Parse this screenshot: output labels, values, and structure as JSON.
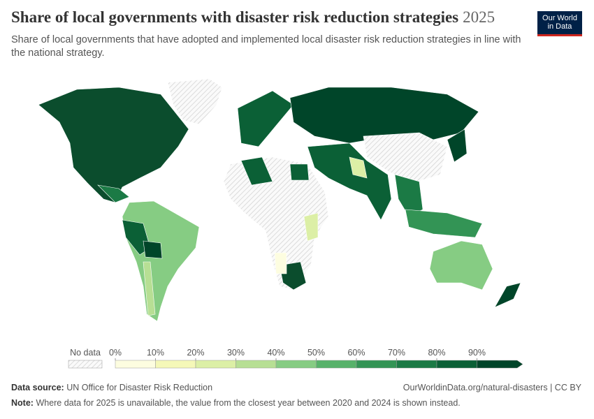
{
  "header": {
    "title": "Share of local governments with disaster risk reduction strategies",
    "year": "2025",
    "subtitle": "Share of local governments that have adopted and implemented local disaster risk reduction strategies in line with the national strategy.",
    "logo": [
      "Our World",
      "in Data"
    ]
  },
  "legend": {
    "no_data": "No data",
    "lim": [
      0,
      100
    ],
    "ticks": [
      {
        "value": 0,
        "label": "0%"
      },
      {
        "value": 10,
        "label": "10%"
      },
      {
        "value": 20,
        "label": "20%"
      },
      {
        "value": 30,
        "label": "30%"
      },
      {
        "value": 40,
        "label": "40%"
      },
      {
        "value": 50,
        "label": "50%"
      },
      {
        "value": 60,
        "label": "60%"
      },
      {
        "value": 70,
        "label": "70%"
      },
      {
        "value": 80,
        "label": "80%"
      },
      {
        "value": 90,
        "label": "90%"
      }
    ],
    "colors": [
      "#fdfde0",
      "#f5f8b8",
      "#dcefa6",
      "#b7df94",
      "#86cc83",
      "#57b26a",
      "#339455",
      "#1b7a45",
      "#0b6036",
      "#004529"
    ]
  },
  "footer": {
    "source_label": "Data source:",
    "source": "UN Office for Disaster Risk Reduction",
    "url": "OurWorldinData.org/natural-disasters | CC BY",
    "note_label": "Note:",
    "note": "Where data for 2025 is unavailable, the value from the closest year between 2020 and 2024 is shown instead."
  }
}
